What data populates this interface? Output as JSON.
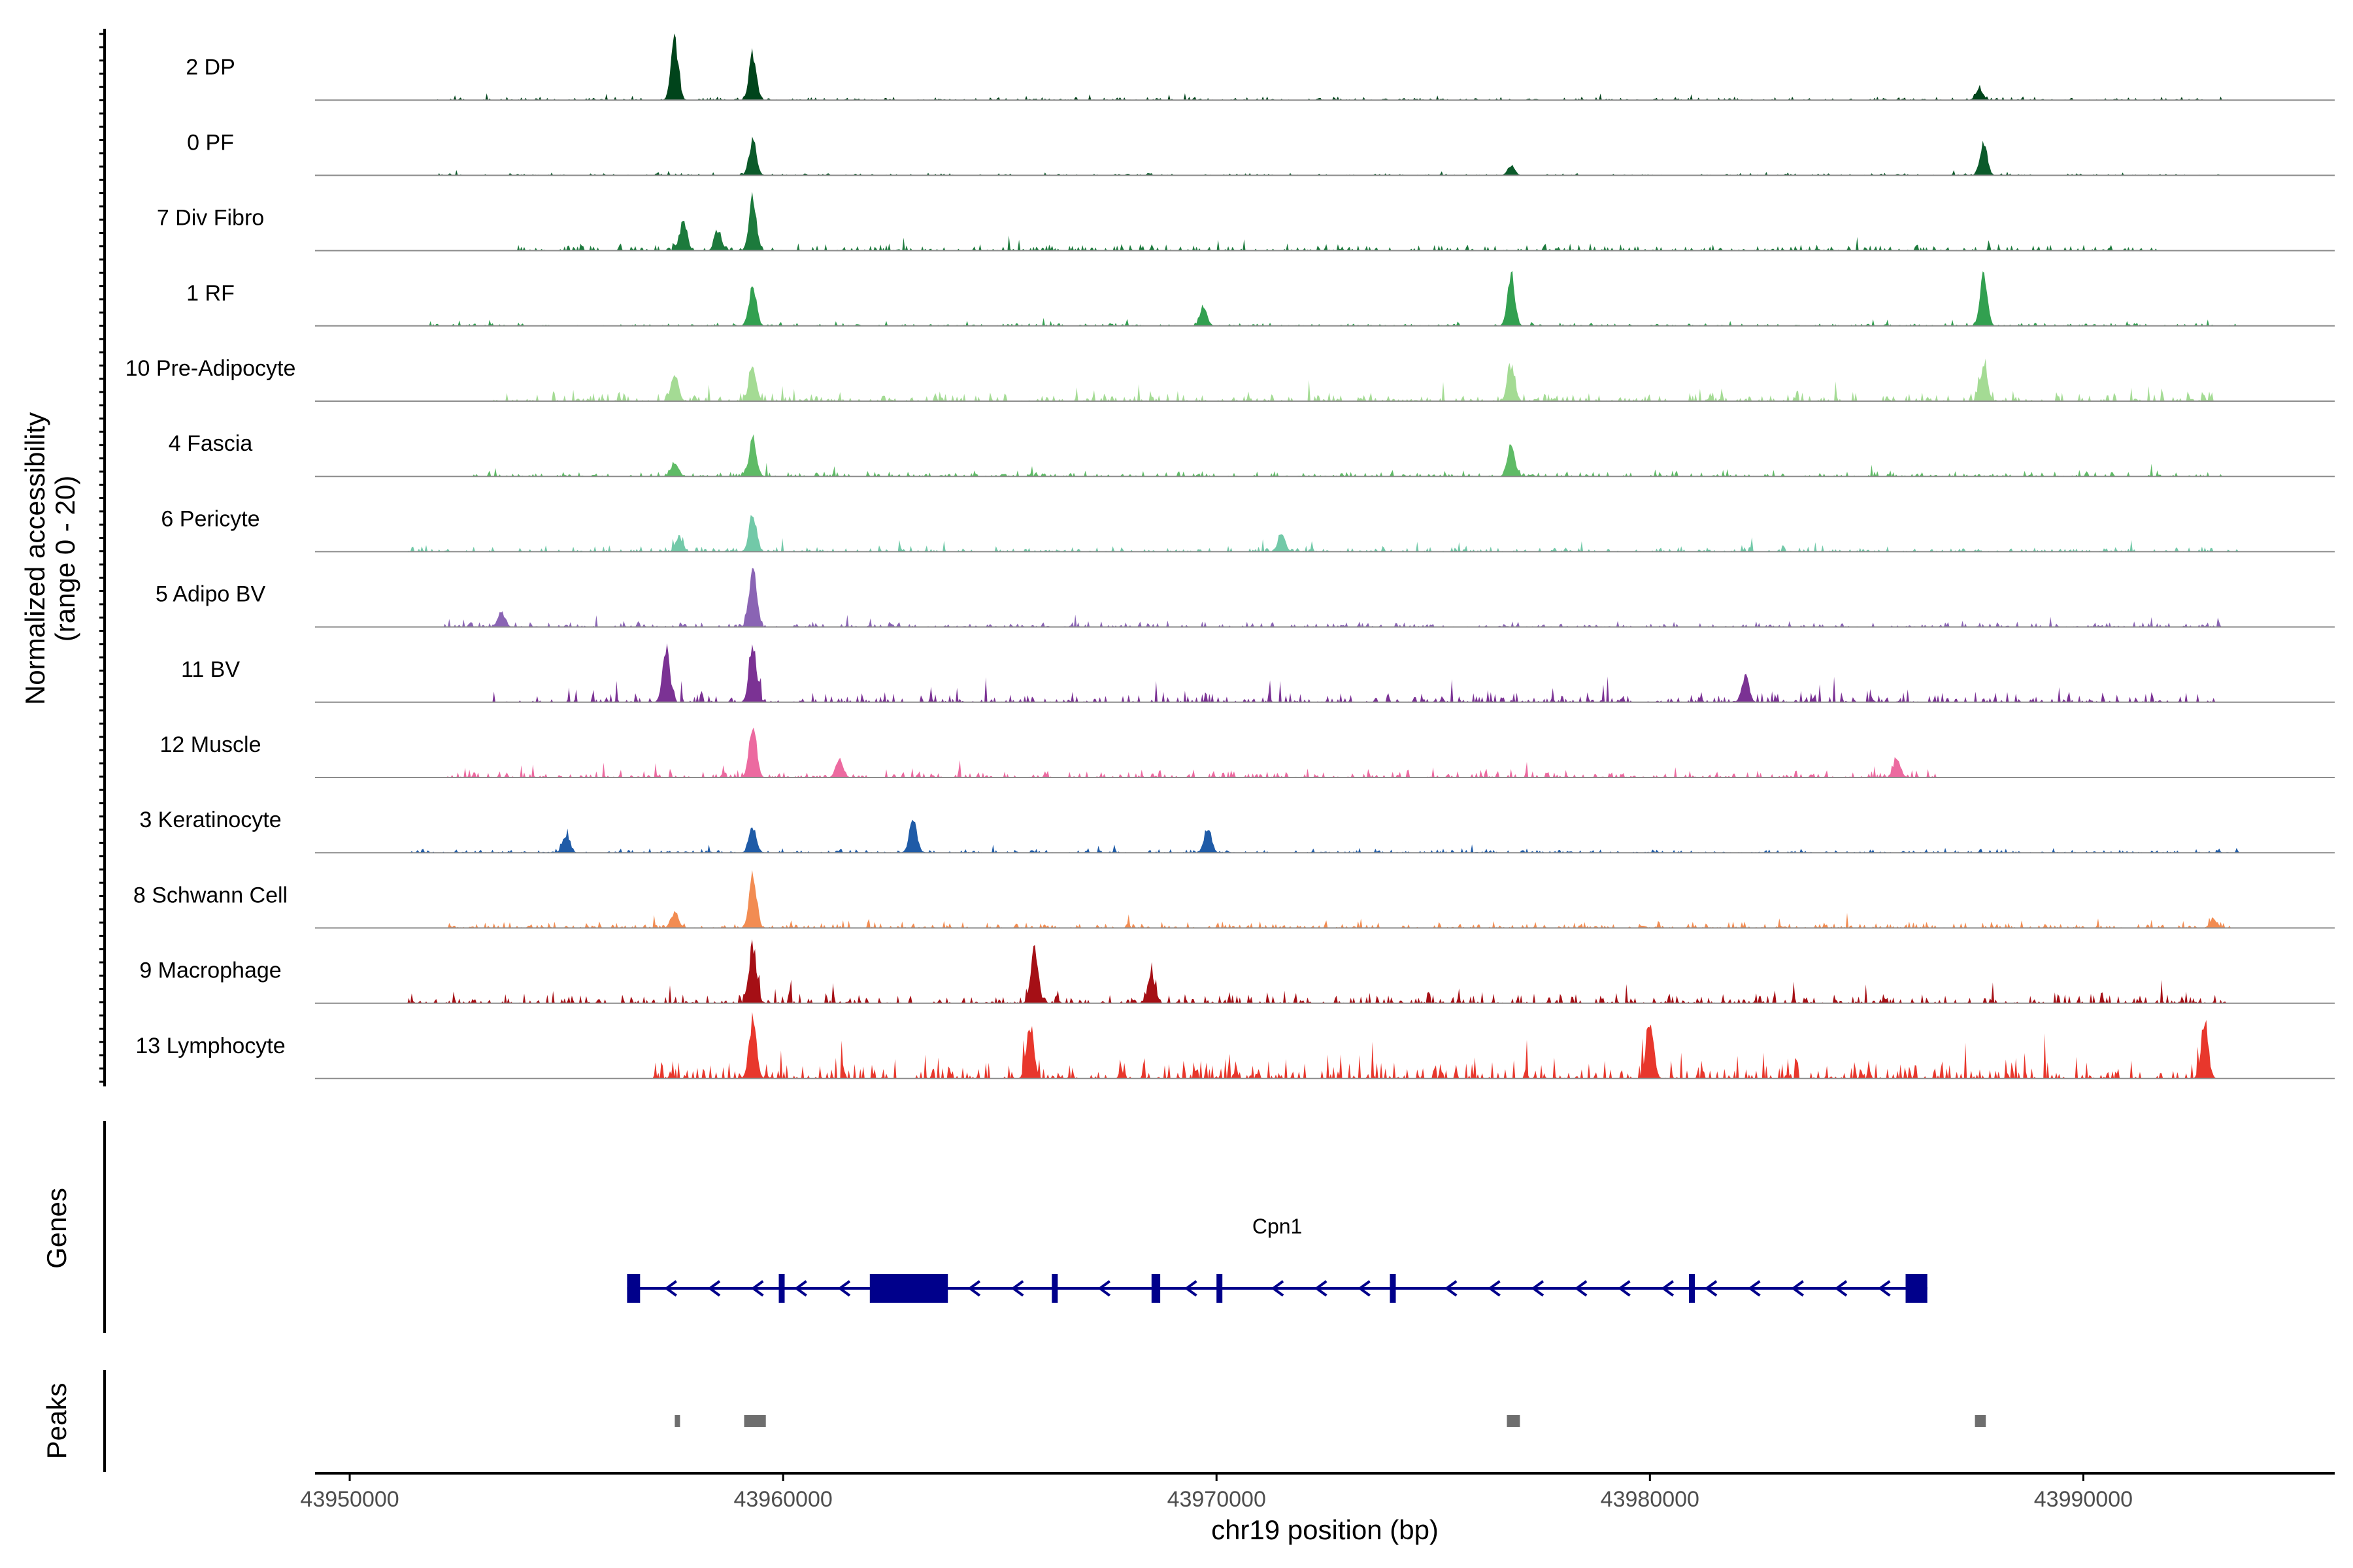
{
  "chart_data": {
    "type": "area",
    "chromosome": "chr19",
    "xlabel": "chr19 position (bp)",
    "ylabel": "Normalized accessibility",
    "ylabel_range": "(range 0 - 20)",
    "ylim": [
      0,
      20
    ],
    "xlim": [
      43949200,
      43995800
    ],
    "xticks": [
      43950000,
      43960000,
      43970000,
      43980000,
      43990000
    ],
    "xtick_labels": [
      "43950000",
      "43960000",
      "43970000",
      "43980000",
      "43990000"
    ],
    "tracks": [
      {
        "name": "2 DP",
        "color": "#00441b",
        "peaks": [
          [
            43957500,
            20
          ],
          [
            43959300,
            16
          ],
          [
            43987600,
            4
          ]
        ],
        "noise": [
          43952000,
          43993400,
          1.2
        ]
      },
      {
        "name": "0 PF",
        "color": "#0b5a2a",
        "peaks": [
          [
            43959300,
            12
          ],
          [
            43987700,
            11
          ],
          [
            43976800,
            3
          ]
        ],
        "noise": [
          43951800,
          43993600,
          0.8
        ]
      },
      {
        "name": "7 Div Fibro",
        "color": "#1c7a3c",
        "peaks": [
          [
            43957700,
            10
          ],
          [
            43959300,
            18
          ],
          [
            43958500,
            6
          ]
        ],
        "noise": [
          43953800,
          43991800,
          2.5
        ]
      },
      {
        "name": "1 RF",
        "color": "#32a050",
        "peaks": [
          [
            43959300,
            14
          ],
          [
            43976800,
            17
          ],
          [
            43987700,
            17
          ],
          [
            43969700,
            6
          ]
        ],
        "noise": [
          43951800,
          43993600,
          1.2
        ]
      },
      {
        "name": "10 Pre-Adipocyte",
        "color": "#a4db94",
        "peaks": [
          [
            43957500,
            9
          ],
          [
            43959300,
            12
          ],
          [
            43976800,
            12
          ],
          [
            43987700,
            12
          ]
        ],
        "noise": [
          43953300,
          43993200,
          3.5
        ]
      },
      {
        "name": "4 Fascia",
        "color": "#5fbb66",
        "peaks": [
          [
            43959300,
            13
          ],
          [
            43976800,
            11
          ],
          [
            43957500,
            5
          ]
        ],
        "noise": [
          43952800,
          43993400,
          2
        ]
      },
      {
        "name": "6 Pericyte",
        "color": "#72c9a8",
        "peaks": [
          [
            43959300,
            13
          ],
          [
            43971500,
            6
          ],
          [
            43957600,
            5
          ]
        ],
        "noise": [
          43951300,
          43993600,
          2.2
        ]
      },
      {
        "name": "5 Adipo BV",
        "color": "#8a64b4",
        "peaks": [
          [
            43959300,
            20
          ],
          [
            43953500,
            5
          ]
        ],
        "noise": [
          43952000,
          43993200,
          2
        ]
      },
      {
        "name": "11 BV",
        "color": "#7b3294",
        "peaks": [
          [
            43957300,
            18
          ],
          [
            43959300,
            19
          ],
          [
            43982200,
            9
          ]
        ],
        "noise": [
          43953200,
          43993200,
          4
        ]
      },
      {
        "name": "12 Muscle",
        "color": "#ec6aa0",
        "peaks": [
          [
            43959300,
            18
          ],
          [
            43961300,
            6
          ],
          [
            43985700,
            6
          ]
        ],
        "noise": [
          43952200,
          43986600,
          3
        ]
      },
      {
        "name": "3 Keratinocyte",
        "color": "#1f5ba7",
        "peaks": [
          [
            43963000,
            12
          ],
          [
            43959300,
            9
          ],
          [
            43969800,
            8
          ],
          [
            43955000,
            6
          ]
        ],
        "noise": [
          43951400,
          43993600,
          1.5
        ]
      },
      {
        "name": "8 Schwann Cell",
        "color": "#f28c52",
        "peaks": [
          [
            43959300,
            18
          ],
          [
            43957500,
            5
          ],
          [
            43993000,
            3
          ]
        ],
        "noise": [
          43952200,
          43993400,
          2.5
        ]
      },
      {
        "name": "9 Macrophage",
        "color": "#a50f15",
        "peaks": [
          [
            43959300,
            20
          ],
          [
            43965800,
            18
          ],
          [
            43968500,
            10
          ]
        ],
        "noise": [
          43951300,
          43993400,
          4
        ]
      },
      {
        "name": "13 Lymphocyte",
        "color": "#e8372c",
        "peaks": [
          [
            43959300,
            20
          ],
          [
            43965700,
            18
          ],
          [
            43980000,
            20
          ],
          [
            43992800,
            17
          ]
        ],
        "noise": [
          43957000,
          43993000,
          8
        ]
      }
    ],
    "genes_label": "Genes",
    "gene": {
      "name": "Cpn1",
      "color": "#00008b",
      "start": 43956400,
      "end": 43986400,
      "strand": "-",
      "exons": [
        [
          43956400,
          43956700
        ],
        [
          43959900,
          43960000
        ],
        [
          43962000,
          43963800
        ],
        [
          43966200,
          43966300
        ],
        [
          43968500,
          43968700
        ],
        [
          43970000,
          43970100
        ],
        [
          43974000,
          43974100
        ],
        [
          43980900,
          43981000
        ],
        [
          43985900,
          43986400
        ]
      ]
    },
    "peaks_label": "Peaks",
    "peak_regions": [
      [
        43957500,
        43957600
      ],
      [
        43959100,
        43959600
      ],
      [
        43976700,
        43977000
      ],
      [
        43987500,
        43987750
      ]
    ],
    "peak_color": "#6e6e6e"
  }
}
